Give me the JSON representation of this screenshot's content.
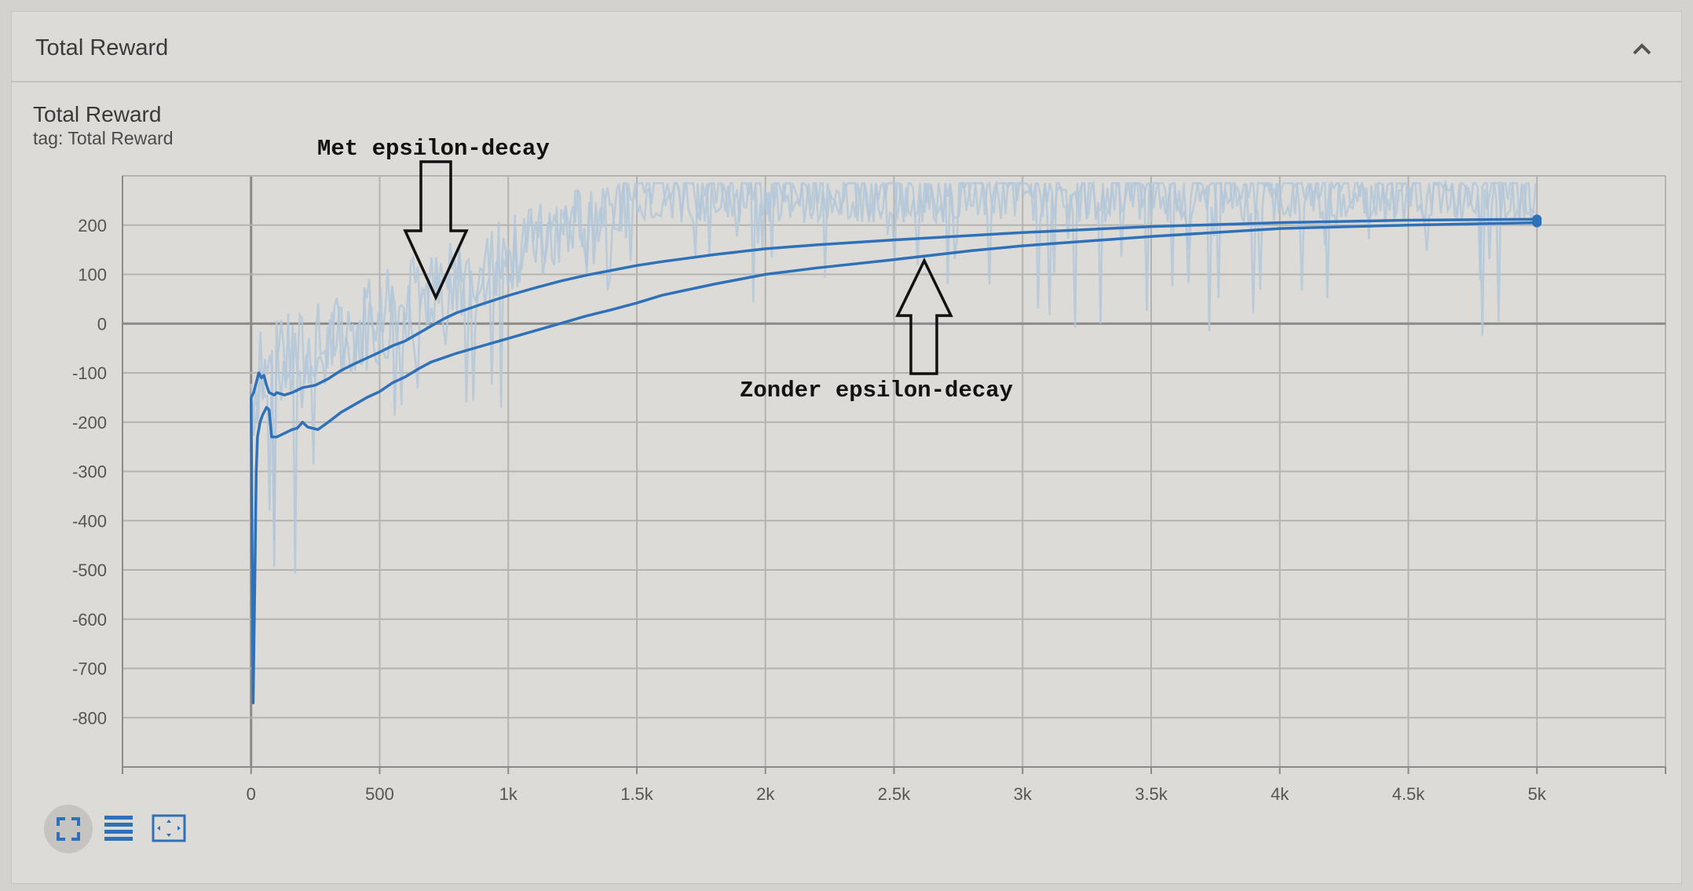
{
  "card": {
    "title": "Total Reward"
  },
  "chart_data": {
    "type": "line",
    "title": "Total Reward",
    "subtitle": "tag: Total Reward",
    "xlim": [
      -500,
      5500
    ],
    "ylim": [
      -900,
      300
    ],
    "x_ticks": [
      0,
      500,
      1000,
      1500,
      2000,
      2500,
      3000,
      3500,
      4000,
      4500,
      5000
    ],
    "x_tick_labels": [
      "0",
      "500",
      "1k",
      "1.5k",
      "2k",
      "2.5k",
      "3k",
      "3.5k",
      "4k",
      "4.5k",
      "5k"
    ],
    "y_ticks": [
      -800,
      -700,
      -600,
      -500,
      -400,
      -300,
      -200,
      -100,
      0,
      100,
      200
    ],
    "y_tick_labels": [
      "-800",
      "-700",
      "-600",
      "-500",
      "-400",
      "-300",
      "-200",
      "-100",
      "0",
      "100",
      "200"
    ],
    "grid": true,
    "series": [
      {
        "values": [
          [
            0,
            -150
          ],
          [
            10,
            -140
          ],
          [
            20,
            -120
          ],
          [
            30,
            -100
          ],
          [
            40,
            -110
          ],
          [
            50,
            -105
          ],
          [
            60,
            -125
          ],
          [
            70,
            -140
          ],
          [
            90,
            -145
          ],
          [
            100,
            -140
          ],
          [
            130,
            -145
          ],
          [
            160,
            -140
          ],
          [
            200,
            -130
          ],
          [
            250,
            -125
          ],
          [
            300,
            -112
          ],
          [
            350,
            -95
          ],
          [
            400,
            -82
          ],
          [
            450,
            -70
          ],
          [
            500,
            -58
          ],
          [
            550,
            -45
          ],
          [
            600,
            -35
          ],
          [
            650,
            -20
          ],
          [
            700,
            -5
          ],
          [
            750,
            10
          ],
          [
            800,
            22
          ],
          [
            900,
            40
          ],
          [
            1000,
            57
          ],
          [
            1100,
            72
          ],
          [
            1200,
            86
          ],
          [
            1300,
            98
          ],
          [
            1400,
            108
          ],
          [
            1500,
            118
          ],
          [
            1600,
            126
          ],
          [
            1800,
            140
          ],
          [
            2000,
            152
          ],
          [
            2200,
            160
          ],
          [
            2500,
            170
          ],
          [
            3000,
            185
          ],
          [
            3500,
            197
          ],
          [
            4000,
            205
          ],
          [
            4500,
            210
          ],
          [
            5000,
            212
          ]
        ],
        "color": "#2f71b8"
      },
      {
        "values": [
          [
            0,
            -150
          ],
          [
            8,
            -770
          ],
          [
            15,
            -500
          ],
          [
            20,
            -300
          ],
          [
            25,
            -230
          ],
          [
            35,
            -200
          ],
          [
            45,
            -185
          ],
          [
            55,
            -175
          ],
          [
            60,
            -170
          ],
          [
            70,
            -175
          ],
          [
            80,
            -230
          ],
          [
            100,
            -230
          ],
          [
            120,
            -225
          ],
          [
            160,
            -215
          ],
          [
            180,
            -212
          ],
          [
            200,
            -200
          ],
          [
            220,
            -210
          ],
          [
            260,
            -215
          ],
          [
            300,
            -200
          ],
          [
            350,
            -180
          ],
          [
            400,
            -165
          ],
          [
            450,
            -150
          ],
          [
            500,
            -138
          ],
          [
            550,
            -120
          ],
          [
            600,
            -108
          ],
          [
            650,
            -92
          ],
          [
            700,
            -78
          ],
          [
            800,
            -60
          ],
          [
            900,
            -45
          ],
          [
            1000,
            -30
          ],
          [
            1100,
            -15
          ],
          [
            1200,
            0
          ],
          [
            1300,
            15
          ],
          [
            1400,
            28
          ],
          [
            1500,
            42
          ],
          [
            1600,
            58
          ],
          [
            1800,
            80
          ],
          [
            2000,
            100
          ],
          [
            2200,
            113
          ],
          [
            2500,
            130
          ],
          [
            2800,
            148
          ],
          [
            3000,
            158
          ],
          [
            3500,
            177
          ],
          [
            4000,
            193
          ],
          [
            4500,
            200
          ],
          [
            5000,
            205
          ]
        ],
        "color": "#2f71b8"
      }
    ],
    "raw_color": "#b3c7d9",
    "annotations": [
      {
        "text": "Met epsilon-decay"
      },
      {
        "text": "Zonder epsilon-decay"
      }
    ]
  },
  "toolbar": {
    "icons": [
      "fit-to-data-icon",
      "toggle-log-scale-icon",
      "download-icon"
    ]
  }
}
